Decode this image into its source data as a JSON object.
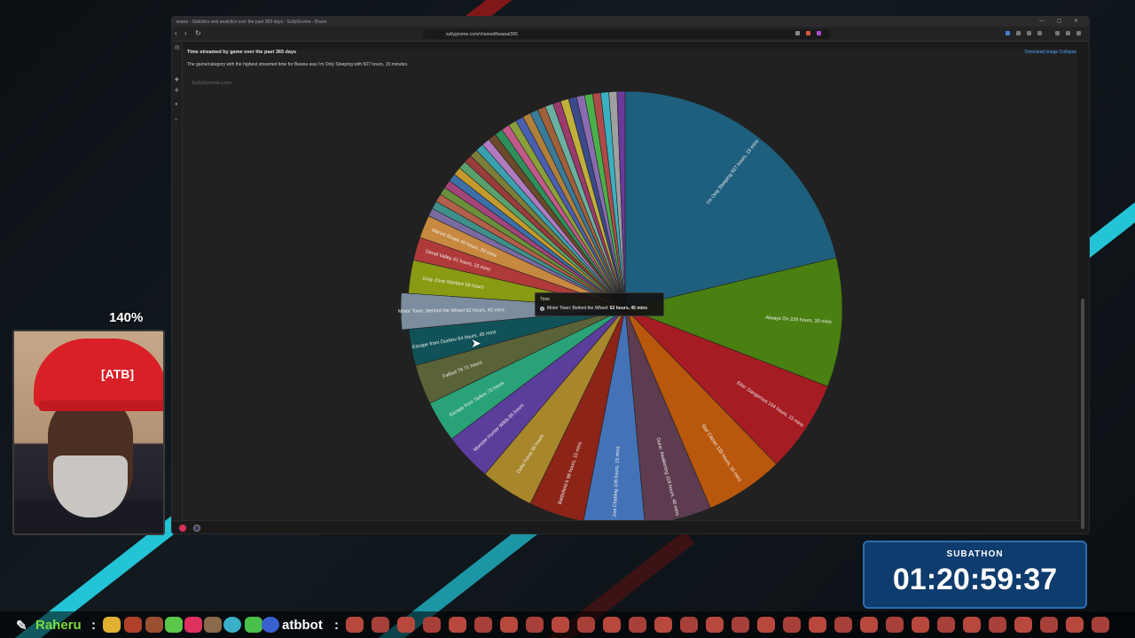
{
  "browser": {
    "window_title": "iwana - Statistics and analytics over the past 365 days - SullyGnome - Brave",
    "url": "sullygnome.com/channel/bwana/365",
    "page_title": "Time streamed by game over the past 365 days",
    "download_link": "Download image Collapse",
    "summary": "The game/category with the highest streamed time for Bwana was I'm Only Sleeping with 507 hours, 15 minutes.",
    "watermark": "SullyGnome.com"
  },
  "tooltip": {
    "title": "Time",
    "name": "Motor Town: Behind the Wheel:",
    "value": "62 hours, 45 mins"
  },
  "chart_data": {
    "type": "pie",
    "unit": "hours",
    "slices": [
      {
        "label": "I'm Only Sleeping 507 hours, 15 mins",
        "name": "I'm Only Sleeping",
        "value": 507.25,
        "color": "#1f5f7e"
      },
      {
        "label": "Always On 229 hours, 30 mins",
        "name": "Always On",
        "value": 229.5,
        "color": "#4a7f12"
      },
      {
        "label": "Elite: Dangerous 164 hours, 15 mins",
        "name": "Elite: Dangerous",
        "value": 164.25,
        "color": "#a51c23"
      },
      {
        "label": "Star Citizen 139 hours, 15 mins",
        "name": "Star Citizen",
        "value": 139.25,
        "color": "#b9580c"
      },
      {
        "label": "Dune: Awakening 118 hours, 45 mins",
        "name": "Dune: Awakening",
        "value": 118.75,
        "color": "#5c3c4e"
      },
      {
        "label": "Just Chatting 108 hours, 15 mins",
        "name": "Just Chatting",
        "value": 108.25,
        "color": "#4372b7"
      },
      {
        "label": "Battlefield 6 98 hours, 15 mins",
        "name": "Battlefield 6",
        "value": 98.25,
        "color": "#8c2418"
      },
      {
        "label": "Delta Force 95 hours",
        "name": "Delta Force",
        "value": 95,
        "color": "#a8862b"
      },
      {
        "label": "Monster Hunter Wilds 85 hours",
        "name": "Monster Hunter Wilds",
        "value": 85,
        "color": "#5a3e9a"
      },
      {
        "label": "Escape from Tarkov 73 hours",
        "name": "Escape from Tarkov",
        "value": 73,
        "color": "#2aa278"
      },
      {
        "label": "Fallout 76 71 hours",
        "name": "Fallout 76",
        "value": 71,
        "color": "#5a6238"
      },
      {
        "label": "Escape from Duckov 64 hours, 45 mins",
        "name": "Escape from Duckov",
        "value": 64.75,
        "color": "#115258"
      },
      {
        "label": "Motor Town: Behind the Wheel 62 hours, 45 mins",
        "name": "Motor Town: Behind the Wheel",
        "value": 62.75,
        "color": "#7b8d9e"
      },
      {
        "label": "Gray Zone Warfare 59 hours",
        "name": "Gray Zone Warfare",
        "value": 59,
        "color": "#8a9a13"
      },
      {
        "label": "Derail Valley 41 hours, 15 mins",
        "name": "Derail Valley",
        "value": 41.25,
        "color": "#b03a3a"
      },
      {
        "label": "Marvel Rivals 40 hours, 30 mins",
        "name": "Marvel Rivals",
        "value": 40.5,
        "color": "#c7883f"
      }
    ],
    "other_small_slices_colors": [
      "#7a6aa0",
      "#3f8f8a",
      "#b15f4a",
      "#6b8f3a",
      "#a3447a",
      "#3c6fa8",
      "#c49a2c",
      "#5aa06b",
      "#9b3c3c",
      "#7d7d3a",
      "#3aa0b0",
      "#b07ac0",
      "#6a4a2a",
      "#2f8f5a",
      "#c05a8a",
      "#8aa03a",
      "#4a5fb0",
      "#b0803a",
      "#3a7a9a",
      "#a0603a",
      "#6ab0a0",
      "#9a3a6a",
      "#c0b03a",
      "#3a4a8a",
      "#8a6ab0",
      "#4ab04a",
      "#b04a4a",
      "#3ab0c0",
      "#a0a0a0",
      "#6a3a9a"
    ]
  },
  "webcam": {
    "zoom": "140%",
    "cap_logo": "[ATB]"
  },
  "subathon": {
    "label": "SUBATHON",
    "time": "01:20:59:37"
  },
  "ticker": {
    "user1": "Raheru",
    "sep1": ":",
    "user2": "atbbot",
    "sep2": ":"
  }
}
